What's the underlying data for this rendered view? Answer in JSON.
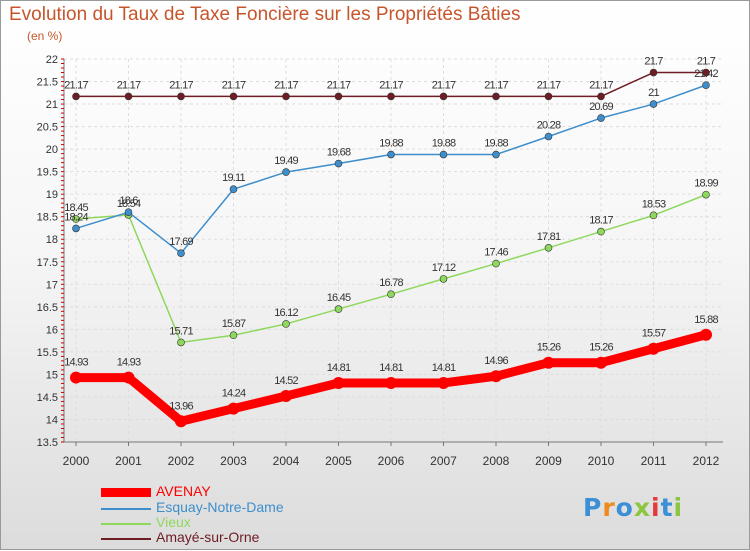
{
  "chart_data": {
    "type": "line",
    "title": "Evolution du Taux de Taxe Foncière sur les Propriétés Bâties",
    "unit_label": "(en %)",
    "xlabel": "",
    "ylabel": "",
    "x": [
      "2000",
      "2001",
      "2002",
      "2003",
      "2004",
      "2005",
      "2006",
      "2007",
      "2008",
      "2009",
      "2010",
      "2011",
      "2012"
    ],
    "y_ticks": [
      "13.5",
      "14",
      "14.5",
      "15",
      "15.5",
      "16",
      "16.5",
      "17",
      "17.5",
      "18",
      "18.5",
      "19",
      "19.5",
      "20",
      "20.5",
      "21",
      "21.5",
      "22"
    ],
    "ylim": [
      13.5,
      22
    ],
    "grid": true,
    "legend_position": "bottom-left",
    "series": [
      {
        "name": "AVENAY",
        "color": "#ff0000",
        "values": [
          14.93,
          14.93,
          13.96,
          14.24,
          14.52,
          14.81,
          14.81,
          14.81,
          14.96,
          15.26,
          15.26,
          15.57,
          15.88
        ],
        "labels": [
          "14.93",
          "14.93",
          "13.96",
          "14.24",
          "14.52",
          "14.81",
          "14.81",
          "14.81",
          "14.96",
          "15.26",
          "15.26",
          "15.57",
          "15.88"
        ]
      },
      {
        "name": "Esquay-Notre-Dame",
        "color": "#3e8ecb",
        "values": [
          18.24,
          18.6,
          17.69,
          19.11,
          19.49,
          19.68,
          19.88,
          19.88,
          19.88,
          20.28,
          20.69,
          21.0,
          21.42
        ],
        "labels": [
          "18.24",
          "18.6",
          "17.69",
          "19.11",
          "19.49",
          "19.68",
          "19.88",
          "19.88",
          "19.88",
          "20.28",
          "20.69",
          "21",
          "21.42"
        ]
      },
      {
        "name": "Vieux",
        "color": "#8fd85e",
        "values": [
          18.45,
          18.54,
          15.71,
          15.87,
          16.12,
          16.45,
          16.78,
          17.12,
          17.46,
          17.81,
          18.17,
          18.53,
          18.99
        ],
        "labels": [
          "18.45",
          "18.54",
          "15.71",
          "15.87",
          "16.12",
          "16.45",
          "16.78",
          "17.12",
          "17.46",
          "17.81",
          "18.17",
          "18.53",
          "18.99"
        ]
      },
      {
        "name": "Amayé-sur-Orne",
        "color": "#6e1d25",
        "values": [
          21.17,
          21.17,
          21.17,
          21.17,
          21.17,
          21.17,
          21.17,
          21.17,
          21.17,
          21.17,
          21.17,
          21.7,
          21.7
        ],
        "labels": [
          "21.17",
          "21.17",
          "21.17",
          "21.17",
          "21.17",
          "21.17",
          "21.17",
          "21.17",
          "21.17",
          "21.17",
          "21.17",
          "21.7",
          "21.7"
        ]
      }
    ]
  },
  "logo": {
    "text": "Proxiti",
    "colors": [
      "#3b8fd6",
      "#f08a1c",
      "#3b8fd6",
      "#8cc63f",
      "#e23b3b",
      "#3b8fd6",
      "#8cc63f"
    ]
  }
}
